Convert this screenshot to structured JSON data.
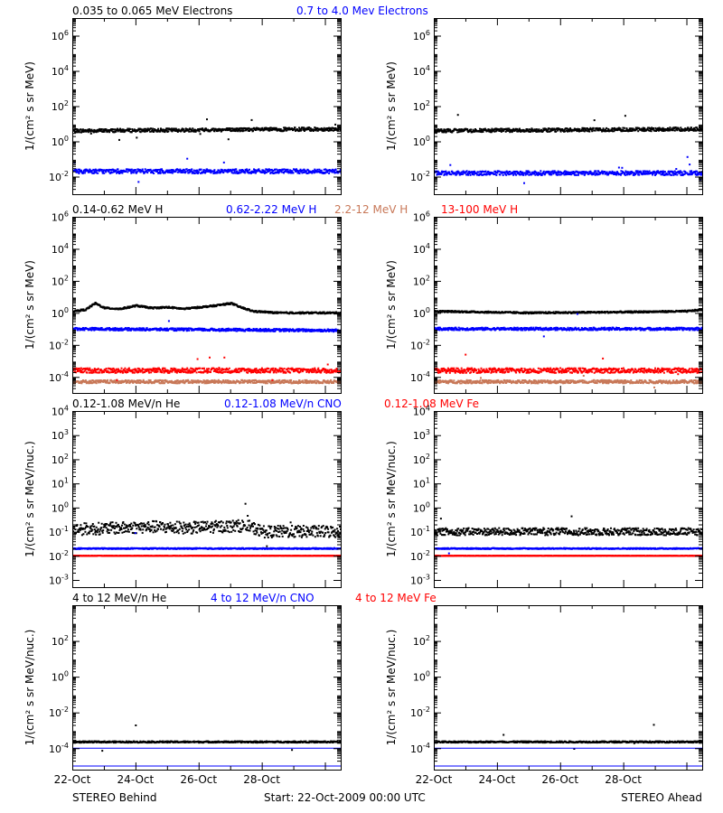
{
  "colors": {
    "black": "#000000",
    "blue": "#0000ff",
    "red": "#ff0000",
    "tan": "#c87858"
  },
  "footer": {
    "left": "STEREO Behind",
    "center": "Start: 22-Oct-2009 00:00 UTC",
    "right": "STEREO Ahead"
  },
  "x_ticks": [
    "22-Oct",
    "24-Oct",
    "26-Oct",
    "28-Oct"
  ],
  "chart_data": [
    {
      "type": "scatter",
      "row": 1,
      "title_items": [
        {
          "text": "0.035 to 0.065 MeV Electrons",
          "color": "#000000"
        },
        {
          "text": "0.7 to 4.0 Mev Electrons",
          "color": "#0000ff"
        }
      ],
      "ylabel": "1/(cm² s sr MeV)",
      "yscale": "log",
      "ylim_exp": [
        -3,
        7
      ],
      "ytick_exponents": [
        -2,
        0,
        2,
        4,
        6
      ],
      "x_days": [
        0,
        8.5
      ],
      "panels": [
        {
          "spacecraft": "STEREO Behind",
          "series": [
            {
              "color": "#000000",
              "level": [
                [
                  0,
                  0.6
                ],
                [
                  8.5,
                  0.7
                ]
              ],
              "spread": 0.1,
              "outliers": 0.5
            },
            {
              "color": "#0000ff",
              "level": [
                [
                  0,
                  -1.7
                ],
                [
                  8.5,
                  -1.7
                ]
              ],
              "spread": 0.12,
              "outliers": 0.7
            }
          ]
        },
        {
          "spacecraft": "STEREO Ahead",
          "series": [
            {
              "color": "#000000",
              "level": [
                [
                  0,
                  0.6
                ],
                [
                  8.5,
                  0.7
                ]
              ],
              "spread": 0.1,
              "outliers": 0.5
            },
            {
              "color": "#0000ff",
              "level": [
                [
                  0,
                  -1.8
                ],
                [
                  8.5,
                  -1.8
                ]
              ],
              "spread": 0.12,
              "outliers": 0.7
            }
          ]
        }
      ]
    },
    {
      "type": "scatter",
      "row": 2,
      "title_items": [
        {
          "text": "0.14-0.62 MeV H",
          "color": "#000000"
        },
        {
          "text": "0.62-2.22 MeV H",
          "color": "#0000ff"
        },
        {
          "text": "2.2-12 MeV H",
          "color": "#c87858"
        },
        {
          "text": "13-100 MeV H",
          "color": "#ff0000"
        }
      ],
      "ylabel": "1/(cm² s sr MeV)",
      "yscale": "log",
      "ylim_exp": [
        -5,
        6
      ],
      "ytick_exponents": [
        -4,
        -2,
        0,
        2,
        4,
        6
      ],
      "x_days": [
        0,
        8.5
      ],
      "panels": [
        {
          "spacecraft": "STEREO Behind",
          "series": [
            {
              "color": "#000000",
              "level": [
                [
                  0,
                  0.1
                ],
                [
                  0.4,
                  0.2
                ],
                [
                  0.7,
                  0.6
                ],
                [
                  1.0,
                  0.3
                ],
                [
                  1.5,
                  0.25
                ],
                [
                  2.0,
                  0.45
                ],
                [
                  2.5,
                  0.3
                ],
                [
                  3.0,
                  0.35
                ],
                [
                  3.5,
                  0.25
                ],
                [
                  4.0,
                  0.35
                ],
                [
                  4.5,
                  0.45
                ],
                [
                  5.0,
                  0.6
                ],
                [
                  5.3,
                  0.35
                ],
                [
                  5.7,
                  0.1
                ],
                [
                  6.5,
                  0.0
                ],
                [
                  8.5,
                  0.0
                ]
              ],
              "spread": 0.05,
              "outliers": 0.1
            },
            {
              "color": "#0000ff",
              "level": [
                [
                  0,
                  -1.0
                ],
                [
                  8.5,
                  -1.1
                ]
              ],
              "spread": 0.08,
              "outliers": 0.1
            },
            {
              "color": "#c87858",
              "level": [
                [
                  0,
                  -4.3
                ],
                [
                  8.5,
                  -4.3
                ]
              ],
              "spread": 0.1,
              "outliers": 0.2
            },
            {
              "color": "#ff0000",
              "level": [
                [
                  0,
                  -3.6
                ],
                [
                  8.5,
                  -3.6
                ]
              ],
              "spread": 0.15,
              "outliers": 0.5
            }
          ]
        },
        {
          "spacecraft": "STEREO Ahead",
          "series": [
            {
              "color": "#000000",
              "level": [
                [
                  0,
                  0.1
                ],
                [
                  3.0,
                  0.0
                ],
                [
                  6.0,
                  0.05
                ],
                [
                  8.0,
                  0.1
                ],
                [
                  8.5,
                  0.2
                ]
              ],
              "spread": 0.05,
              "outliers": 0.1
            },
            {
              "color": "#0000ff",
              "level": [
                [
                  0,
                  -1.0
                ],
                [
                  8.5,
                  -1.0
                ]
              ],
              "spread": 0.08,
              "outliers": 0.1
            },
            {
              "color": "#c87858",
              "level": [
                [
                  0,
                  -4.3
                ],
                [
                  8.5,
                  -4.3
                ]
              ],
              "spread": 0.1,
              "outliers": 0.2
            },
            {
              "color": "#ff0000",
              "level": [
                [
                  0,
                  -3.6
                ],
                [
                  8.5,
                  -3.6
                ]
              ],
              "spread": 0.15,
              "outliers": 0.5
            }
          ]
        }
      ]
    },
    {
      "type": "scatter",
      "row": 3,
      "title_items": [
        {
          "text": "0.12-1.08 MeV/n He",
          "color": "#000000"
        },
        {
          "text": "0.12-1.08 MeV/n CNO",
          "color": "#0000ff"
        },
        {
          "text": "0.12-1.08 MeV Fe",
          "color": "#ff0000"
        }
      ],
      "ylabel": "1/(cm² s sr MeV/nuc.)",
      "yscale": "log",
      "ylim_exp": [
        -3.3,
        4
      ],
      "ytick_exponents": [
        -3,
        -2,
        -1,
        0,
        1,
        2,
        3,
        4
      ],
      "x_days": [
        0,
        8.5
      ],
      "panels": [
        {
          "spacecraft": "STEREO Behind",
          "series": [
            {
              "color": "#000000",
              "level": [
                [
                  0,
                  -0.9
                ],
                [
                  1.5,
                  -0.85
                ],
                [
                  2.5,
                  -0.8
                ],
                [
                  3.5,
                  -0.85
                ],
                [
                  4.5,
                  -0.8
                ],
                [
                  5.5,
                  -0.75
                ],
                [
                  6.0,
                  -1.0
                ],
                [
                  8.5,
                  -1.0
                ]
              ],
              "spread": 0.25,
              "outliers": 0.6
            },
            {
              "color": "#0000ff",
              "level": [
                [
                  0,
                  -1.7
                ],
                [
                  8.5,
                  -1.7
                ]
              ],
              "spread": 0.02,
              "outliers": 0.1
            },
            {
              "color": "#ff0000",
              "level": [
                [
                  0,
                  -2.0
                ],
                [
                  8.5,
                  -2.0
                ]
              ],
              "spread": 0.01,
              "outliers": 0
            }
          ]
        },
        {
          "spacecraft": "STEREO Ahead",
          "series": [
            {
              "color": "#000000",
              "level": [
                [
                  0,
                  -1.0
                ],
                [
                  8.5,
                  -1.0
                ]
              ],
              "spread": 0.15,
              "outliers": 0.4
            },
            {
              "color": "#0000ff",
              "level": [
                [
                  0,
                  -1.7
                ],
                [
                  8.5,
                  -1.7
                ]
              ],
              "spread": 0.02,
              "outliers": 0.1
            },
            {
              "color": "#ff0000",
              "level": [
                [
                  0,
                  -2.0
                ],
                [
                  8.5,
                  -2.0
                ]
              ],
              "spread": 0.01,
              "outliers": 0
            }
          ]
        }
      ]
    },
    {
      "type": "scatter",
      "row": 4,
      "title_items": [
        {
          "text": "4 to 12 MeV/n He",
          "color": "#000000"
        },
        {
          "text": "4 to 12 MeV/n CNO",
          "color": "#0000ff"
        },
        {
          "text": "4 to 12 MeV Fe",
          "color": "#ff0000"
        }
      ],
      "ylabel": "1/(cm² s sr MeV/nuc.)",
      "yscale": "log",
      "ylim_exp": [
        -5.2,
        4
      ],
      "ytick_exponents": [
        -4,
        -2,
        0,
        2
      ],
      "x_days": [
        0,
        8.5
      ],
      "panels": [
        {
          "spacecraft": "STEREO Behind",
          "series": [
            {
              "color": "#000000",
              "level": [
                [
                  0,
                  -3.65
                ],
                [
                  8.5,
                  -3.65
                ]
              ],
              "spread": 0.04,
              "outliers": 0.3
            },
            {
              "color": "#0000ff",
              "level": [
                [
                  0,
                  -4.0
                ],
                [
                  8.5,
                  -4.0
                ]
              ],
              "spread": 0.0,
              "outliers": 0
            },
            {
              "color": "#0000ff",
              "level": [
                [
                  0,
                  -5.0
                ],
                [
                  8.5,
                  -5.0
                ]
              ],
              "spread": 0.0,
              "outliers": 0
            }
          ]
        },
        {
          "spacecraft": "STEREO Ahead",
          "series": [
            {
              "color": "#000000",
              "level": [
                [
                  0,
                  -3.65
                ],
                [
                  8.5,
                  -3.65
                ]
              ],
              "spread": 0.04,
              "outliers": 0.3
            },
            {
              "color": "#0000ff",
              "level": [
                [
                  0,
                  -4.0
                ],
                [
                  8.5,
                  -4.0
                ]
              ],
              "spread": 0.0,
              "outliers": 0
            },
            {
              "color": "#0000ff",
              "level": [
                [
                  0,
                  -5.0
                ],
                [
                  8.5,
                  -5.0
                ]
              ],
              "spread": 0.0,
              "outliers": 0
            }
          ]
        }
      ]
    }
  ]
}
